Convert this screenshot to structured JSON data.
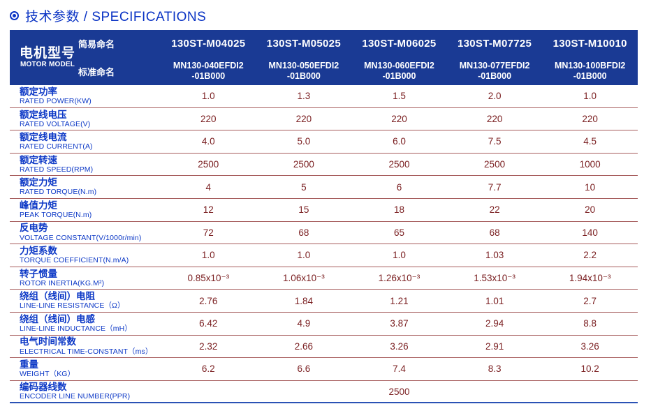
{
  "title": {
    "icon": "circled-dot",
    "text": "技术参数 / SPECIFICATIONS"
  },
  "colors": {
    "title_blue": "#0a33c4",
    "header_bg": "#1a3a94",
    "label_blue": "#0c38c6",
    "value_maroon": "#7b2022",
    "divider": "#a65c5c",
    "bottom_rule": "#2b52b5"
  },
  "table": {
    "header": {
      "motor_model_cn": "电机型号",
      "motor_model_en": "MOTOR MODEL",
      "simple_name_label": "简易命名",
      "standard_name_label": "标准命名",
      "columns": [
        {
          "simple": "130ST-M04025",
          "standard": "MN130-040EFDI2\n-01B000"
        },
        {
          "simple": "130ST-M05025",
          "standard": "MN130-050EFDI2\n-01B000"
        },
        {
          "simple": "130ST-M06025",
          "standard": "MN130-060EFDI2\n-01B000"
        },
        {
          "simple": "130ST-M07725",
          "standard": "MN130-077EFDI2\n-01B000"
        },
        {
          "simple": "130ST-M10010",
          "standard": "MN130-100BFDI2\n-01B000"
        }
      ]
    },
    "rows": [
      {
        "cn": "额定功率",
        "en": "RATED POWER(KW)",
        "values": [
          "1.0",
          "1.3",
          "1.5",
          "2.0",
          "1.0"
        ]
      },
      {
        "cn": "额定线电压",
        "en": "RATED VOLTAGE(V)",
        "values": [
          "220",
          "220",
          "220",
          "220",
          "220"
        ]
      },
      {
        "cn": "额定线电流",
        "en": "RATED CURRENT(A)",
        "values": [
          "4.0",
          "5.0",
          "6.0",
          "7.5",
          "4.5"
        ]
      },
      {
        "cn": "额定转速",
        "en": "RATED SPEED(RPM)",
        "values": [
          "2500",
          "2500",
          "2500",
          "2500",
          "1000"
        ]
      },
      {
        "cn": "额定力矩",
        "en": "RATED TORQUE(N.m)",
        "values": [
          "4",
          "5",
          "6",
          "7.7",
          "10"
        ]
      },
      {
        "cn": "峰值力矩",
        "en": "PEAK TORQUE(N.m)",
        "values": [
          "12",
          "15",
          "18",
          "22",
          "20"
        ]
      },
      {
        "cn": "反电势",
        "en": "VOLTAGE CONSTANT(V/1000r/min)",
        "values": [
          "72",
          "68",
          "65",
          "68",
          "140"
        ]
      },
      {
        "cn": "力矩系数",
        "en": "TORQUE COEFFICIENT(N.m/A)",
        "values": [
          "1.0",
          "1.0",
          "1.0",
          "1.03",
          "2.2"
        ]
      },
      {
        "cn": "转子惯量",
        "en": "ROTOR INERTIA(KG.M²)",
        "values": [
          "0.85x10⁻³",
          "1.06x10⁻³",
          "1.26x10⁻³",
          "1.53x10⁻³",
          "1.94x10⁻³"
        ]
      },
      {
        "cn": "绕组（线间）电阻",
        "en": "LINE-LINE RESISTANCE（Ω）",
        "values": [
          "2.76",
          "1.84",
          "1.21",
          "1.01",
          "2.7"
        ]
      },
      {
        "cn": "绕组（线间）电感",
        "en": "LINE-LINE INDUCTANCE（mH）",
        "values": [
          "6.42",
          "4.9",
          "3.87",
          "2.94",
          "8.8"
        ]
      },
      {
        "cn": "电气时间常数",
        "en": "ELECTRICAL TIME-CONSTANT（ms）",
        "values": [
          "2.32",
          "2.66",
          "3.26",
          "2.91",
          "3.26"
        ]
      },
      {
        "cn": "重量",
        "en": "WEIGHT（KG）",
        "values": [
          "6.2",
          "6.6",
          "7.4",
          "8.3",
          "10.2"
        ]
      }
    ],
    "encoder_row": {
      "cn": "编码器线数",
      "en": "ENCODER LINE NUMBER(PPR)",
      "value": "2500"
    }
  }
}
